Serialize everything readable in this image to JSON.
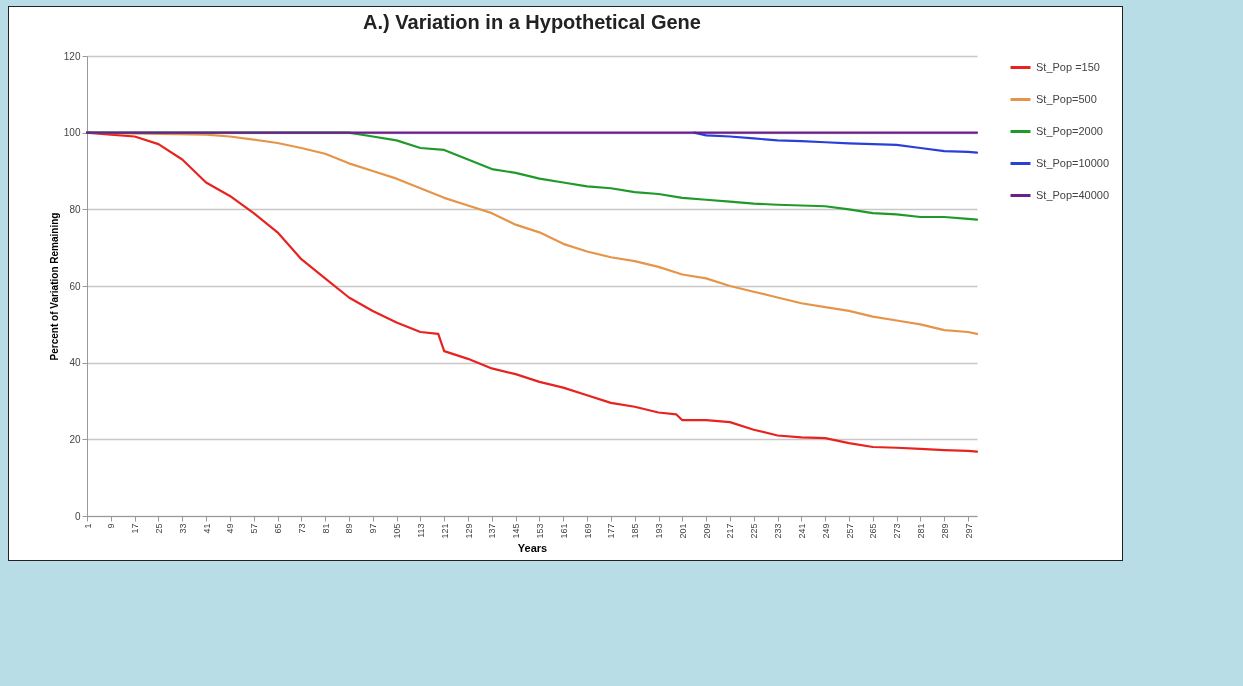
{
  "chart_data": {
    "type": "line",
    "title": "A.) Variation in a Hypothetical Gene",
    "xlabel": "Years",
    "ylabel": "Percent of Variation Remaining",
    "xlim": [
      1,
      300
    ],
    "xticks": [
      1,
      9,
      17,
      25,
      33,
      41,
      49,
      57,
      65,
      73,
      81,
      89,
      97,
      105,
      113,
      121,
      129,
      137,
      145,
      153,
      161,
      169,
      177,
      185,
      193,
      201,
      209,
      217,
      225,
      233,
      241,
      249,
      257,
      265,
      273,
      281,
      289,
      297
    ],
    "ylim": [
      0,
      120
    ],
    "yticks": [
      0,
      20,
      40,
      60,
      80,
      100,
      120
    ],
    "grid": "y",
    "legend": "right",
    "marker": "none",
    "line_style": "solid",
    "series": [
      {
        "name": "St_Pop =150",
        "color": "#e8231f",
        "x": [
          1,
          9,
          17,
          25,
          33,
          41,
          49,
          57,
          65,
          73,
          81,
          89,
          97,
          105,
          113,
          119,
          121,
          129,
          137,
          145,
          153,
          161,
          169,
          177,
          185,
          193,
          199,
          201,
          209,
          217,
          225,
          233,
          241,
          249,
          257,
          265,
          273,
          281,
          289,
          297,
          300
        ],
        "values": [
          100,
          99.5,
          99,
          97,
          93,
          87,
          83.5,
          79,
          74,
          67,
          62,
          57,
          53.5,
          50.5,
          48,
          47.5,
          43,
          41,
          38.5,
          37,
          35,
          33.5,
          31.5,
          29.5,
          28.5,
          27,
          26.5,
          25,
          25,
          24.5,
          22.5,
          21,
          20.5,
          20.3,
          19,
          18,
          17.8,
          17.5,
          17.2,
          17,
          16.8
        ]
      },
      {
        "name": "St_Pop=500",
        "color": "#e5954a",
        "x": [
          1,
          41,
          49,
          57,
          65,
          73,
          81,
          89,
          97,
          105,
          113,
          121,
          129,
          137,
          145,
          153,
          161,
          169,
          177,
          185,
          193,
          201,
          209,
          217,
          225,
          233,
          241,
          249,
          257,
          265,
          273,
          281,
          289,
          297,
          300
        ],
        "values": [
          100,
          99.5,
          99,
          98.2,
          97.3,
          96,
          94.5,
          92,
          90,
          88,
          85.5,
          83,
          81,
          79,
          76,
          74,
          71,
          69,
          67.5,
          66.5,
          65,
          63,
          62,
          60,
          58.5,
          57,
          55.5,
          54.5,
          53.5,
          52,
          51,
          50,
          48.5,
          48,
          47.5
        ]
      },
      {
        "name": "St_Pop=2000",
        "color": "#1f9a2a",
        "x": [
          1,
          89,
          97,
          105,
          113,
          121,
          129,
          137,
          145,
          153,
          161,
          169,
          177,
          185,
          193,
          201,
          209,
          217,
          225,
          233,
          241,
          249,
          257,
          265,
          273,
          281,
          289,
          297,
          300
        ],
        "values": [
          100,
          100,
          99,
          98,
          96,
          95.5,
          93,
          90.5,
          89.5,
          88,
          87,
          86,
          85.5,
          84.5,
          84,
          83,
          82.5,
          82,
          81.5,
          81.2,
          81,
          80.8,
          80,
          79,
          78.7,
          78,
          78,
          77.5,
          77.3
        ]
      },
      {
        "name": "St_Pop=10000",
        "color": "#2a3fd8",
        "x": [
          205,
          209,
          217,
          225,
          233,
          241,
          249,
          257,
          265,
          273,
          281,
          289,
          297,
          300
        ],
        "values": [
          100,
          99.3,
          99,
          98.5,
          98,
          97.8,
          97.5,
          97.2,
          97,
          96.8,
          96,
          95.2,
          95,
          94.8
        ]
      },
      {
        "name": "St_Pop=40000",
        "color": "#6a1f8a",
        "x": [
          1,
          300
        ],
        "values": [
          100,
          100
        ]
      }
    ]
  }
}
